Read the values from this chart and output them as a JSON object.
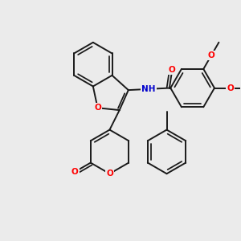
{
  "background_color": "#ebebeb",
  "bond_color": "#1a1a1a",
  "bond_width": 1.4,
  "atom_colors": {
    "O": "#ff0000",
    "N": "#0000cc",
    "C": "#1a1a1a"
  },
  "font_size_atom": 7.5,
  "xlim": [
    0,
    10
  ],
  "ylim": [
    0,
    10
  ]
}
